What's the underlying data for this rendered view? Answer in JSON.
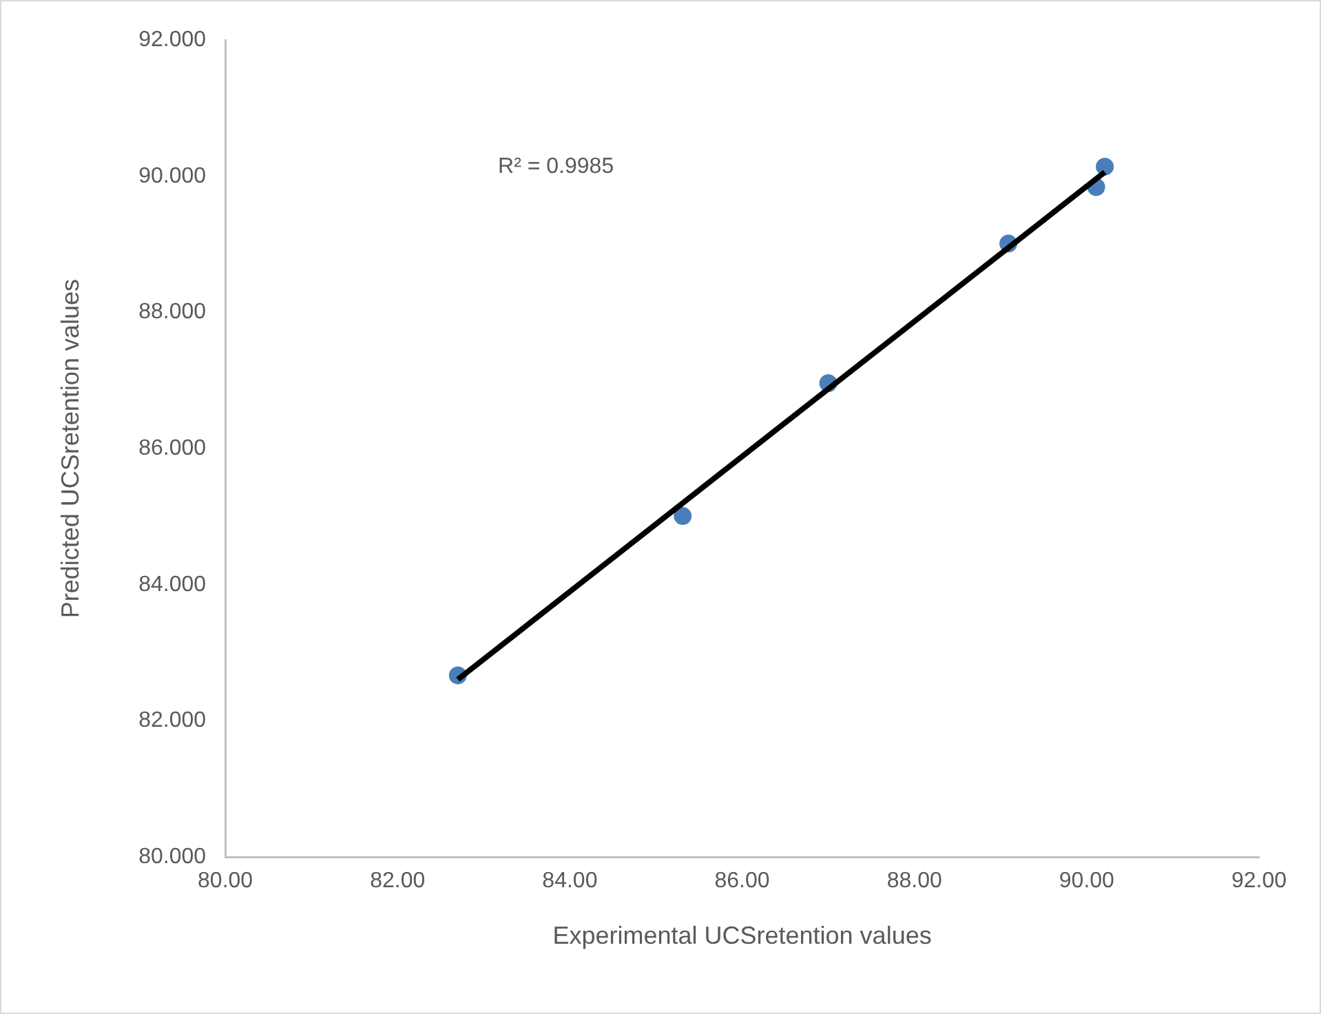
{
  "chart_data": {
    "type": "scatter",
    "xlabel": "Experimental UCSretention values",
    "ylabel": "Predicted UCSretention values",
    "x": [
      82.7,
      85.31,
      87.0,
      89.09,
      90.11,
      90.21
    ],
    "series": [
      {
        "color": "#4a7ebb",
        "values": [
          82.67,
          85.01,
          86.96,
          89.01,
          89.84,
          90.14
        ]
      },
      {
        "type": "line",
        "marker": "none",
        "color": "#000000",
        "x": [
          82.7,
          90.21
        ],
        "values": [
          82.61,
          90.06
        ]
      }
    ],
    "xlim": [
      80,
      92
    ],
    "xticks": [
      {
        "value": 80,
        "label": "80.00"
      },
      {
        "value": 82,
        "label": "82.00"
      },
      {
        "value": 84,
        "label": "84.00"
      },
      {
        "value": 86,
        "label": "86.00"
      },
      {
        "value": 88,
        "label": "88.00"
      },
      {
        "value": 90,
        "label": "90.00"
      },
      {
        "value": 92,
        "label": "92.00"
      }
    ],
    "ylim": [
      80,
      92
    ],
    "yticks": [
      {
        "value": 80,
        "label": "80.000"
      },
      {
        "value": 82,
        "label": "82.000"
      },
      {
        "value": 84,
        "label": "84.000"
      },
      {
        "value": 86,
        "label": "86.000"
      },
      {
        "value": 88,
        "label": "88.000"
      },
      {
        "value": 90,
        "label": "90.000"
      },
      {
        "value": 92,
        "label": "92.000"
      }
    ],
    "grid": false,
    "legend": false,
    "marker": "circle",
    "annotations": [
      "R² = 0.9985"
    ]
  }
}
